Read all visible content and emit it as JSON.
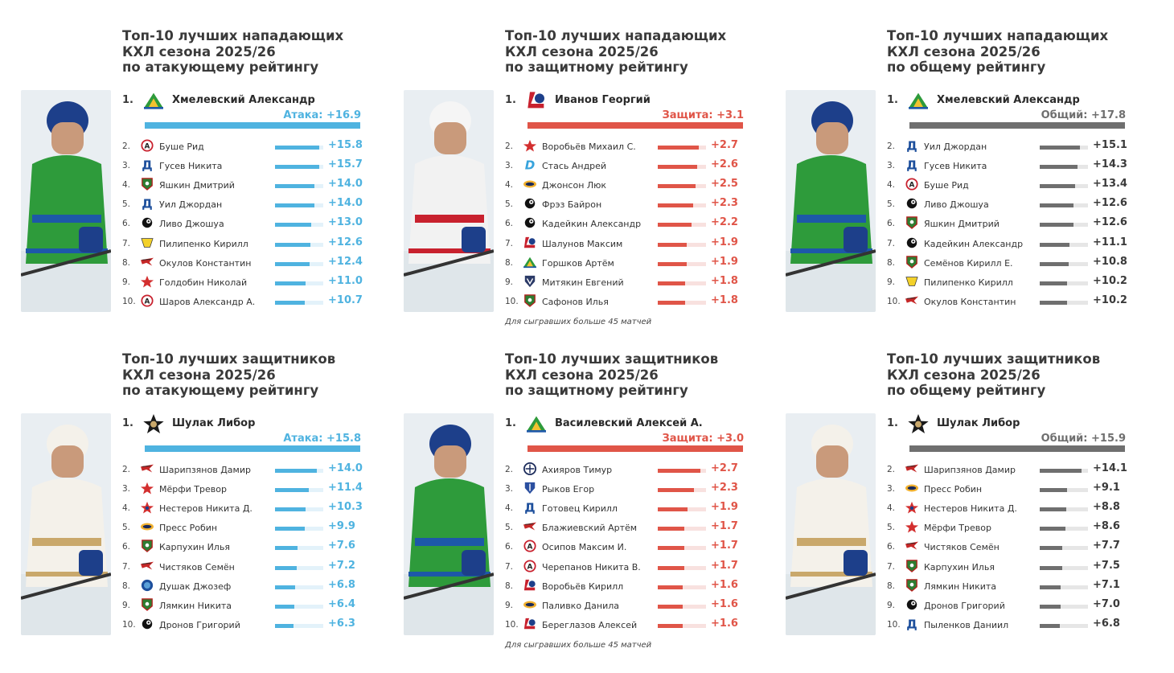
{
  "colors": {
    "attack": "#4fb3e0",
    "defense": "#e05548",
    "overall": "#6f6f6f"
  },
  "panels": [
    {
      "id": "fwd-attack",
      "title": "Топ-10 лучших нападающих\nКХЛ сезона 2025/26\nпо атакующему рейтингу",
      "color": "attack",
      "photo": {
        "jersey": "#2e9b3b",
        "trim": "#1d58a8",
        "helmet": "#1d3f8a"
      },
      "first": {
        "rank": "1.",
        "name": "Хмелевский Александр",
        "score_label": "Атака: +16.9",
        "value": 16.9,
        "logo_icon": "salavat-logo-icon"
      },
      "footnote": "",
      "chart_data": {
        "type": "bar",
        "categories": [
          "Хмелевский Александр",
          "Буше Рид",
          "Гусев Никита",
          "Яшкин Дмитрий",
          "Уил Джордан",
          "Ливо Джошуа",
          "Пилипенко Кирилл",
          "Окулов Константин",
          "Голдобин Николай",
          "Шаров Александр А."
        ],
        "values": [
          16.9,
          15.8,
          15.7,
          14.0,
          14.0,
          13.0,
          12.6,
          12.4,
          11.0,
          10.7
        ]
      },
      "rows": [
        {
          "rank": "2.",
          "name": "Буше Рид",
          "value": 15.8,
          "label": "+15.8",
          "logo_icon": "avangard-logo-icon"
        },
        {
          "rank": "3.",
          "name": "Гусев Никита",
          "value": 15.7,
          "label": "+15.7",
          "logo_icon": "dynamo-logo-icon"
        },
        {
          "rank": "4.",
          "name": "Яшкин Дмитрий",
          "value": 14.0,
          "label": "+14.0",
          "logo_icon": "akbars-logo-icon"
        },
        {
          "rank": "5.",
          "name": "Уил Джордан",
          "value": 14.0,
          "label": "+14.0",
          "logo_icon": "dynamo-logo-icon"
        },
        {
          "rank": "6.",
          "name": "Ливо Джошуа",
          "value": 13.0,
          "label": "+13.0",
          "logo_icon": "traktor-logo-icon"
        },
        {
          "rank": "7.",
          "name": "Пилипенко Кирилл",
          "value": 12.6,
          "label": "+12.6",
          "logo_icon": "severstal-logo-icon"
        },
        {
          "rank": "8.",
          "name": "Окулов Константин",
          "value": 12.4,
          "label": "+12.4",
          "logo_icon": "metallurg-logo-icon"
        },
        {
          "rank": "9.",
          "name": "Голдобин Николай",
          "value": 11.0,
          "label": "+11.0",
          "logo_icon": "spartak-logo-icon"
        },
        {
          "rank": "10.",
          "name": "Шаров Александр А.",
          "value": 10.7,
          "label": "+10.7",
          "logo_icon": "avangard-logo-icon"
        }
      ]
    },
    {
      "id": "fwd-defense",
      "title": "Топ-10 лучших нападающих\nКХЛ сезона 2025/26\nпо защитному рейтингу",
      "color": "defense",
      "photo": {
        "jersey": "#f2f2f2",
        "trim": "#c8212e",
        "helmet": "#f5f5f5"
      },
      "first": {
        "rank": "1.",
        "name": "Иванов Георгий",
        "score_label": "Защита: +3.1",
        "value": 3.1,
        "logo_icon": "lokomotiv-logo-icon"
      },
      "footnote": "Для сыгравших больше 45 матчей",
      "chart_data": {
        "type": "bar",
        "categories": [
          "Иванов Георгий",
          "Воробьёв Михаил С.",
          "Стась Андрей",
          "Джонсон Люк",
          "Фрэз Байрон",
          "Кадейкин Александр",
          "Шалунов Максим",
          "Горшков Артём",
          "Митякин Евгений",
          "Сафонов Илья"
        ],
        "values": [
          3.1,
          2.7,
          2.6,
          2.5,
          2.3,
          2.2,
          1.9,
          1.9,
          1.8,
          1.8
        ]
      },
      "rows": [
        {
          "rank": "2.",
          "name": "Воробьёв Михаил С.",
          "value": 2.7,
          "label": "+2.7",
          "logo_icon": "spartak-logo-icon"
        },
        {
          "rank": "3.",
          "name": "Стась Андрей",
          "value": 2.6,
          "label": "+2.6",
          "logo_icon": "dinamo-minsk-logo-icon"
        },
        {
          "rank": "4.",
          "name": "Джонсон Люк",
          "value": 2.5,
          "label": "+2.5",
          "logo_icon": "torpedo-logo-icon"
        },
        {
          "rank": "5.",
          "name": "Фрэз Байрон",
          "value": 2.3,
          "label": "+2.3",
          "logo_icon": "traktor-logo-icon"
        },
        {
          "rank": "6.",
          "name": "Кадейкин Александр",
          "value": 2.2,
          "label": "+2.2",
          "logo_icon": "traktor-logo-icon"
        },
        {
          "rank": "7.",
          "name": "Шалунов Максим",
          "value": 1.9,
          "label": "+1.9",
          "logo_icon": "lokomotiv-logo-icon"
        },
        {
          "rank": "8.",
          "name": "Горшков Артём",
          "value": 1.9,
          "label": "+1.9",
          "logo_icon": "salavat-logo-icon"
        },
        {
          "rank": "9.",
          "name": "Митякин Евгений",
          "value": 1.8,
          "label": "+1.8",
          "logo_icon": "avtomobilist-logo-icon"
        },
        {
          "rank": "10.",
          "name": "Сафонов Илья",
          "value": 1.8,
          "label": "+1.8",
          "logo_icon": "akbars-logo-icon"
        }
      ]
    },
    {
      "id": "fwd-overall",
      "title": "Топ-10 лучших нападающих\nКХЛ сезона 2025/26\nпо общему рейтингу",
      "color": "overall",
      "photo": {
        "jersey": "#2e9b3b",
        "trim": "#1d58a8",
        "helmet": "#1d3f8a"
      },
      "first": {
        "rank": "1.",
        "name": "Хмелевский Александр",
        "score_label": "Общий: +17.8",
        "value": 17.8,
        "logo_icon": "salavat-logo-icon"
      },
      "footnote": "",
      "chart_data": {
        "type": "bar",
        "categories": [
          "Хмелевский Александр",
          "Уил Джордан",
          "Гусев Никита",
          "Буше Рид",
          "Ливо Джошуа",
          "Яшкин Дмитрий",
          "Кадейкин Александр",
          "Семёнов Кирилл Е.",
          "Пилипенко Кирилл",
          "Окулов Константин"
        ],
        "values": [
          17.8,
          15.1,
          14.3,
          13.4,
          12.6,
          12.6,
          11.1,
          10.8,
          10.2,
          10.2
        ]
      },
      "rows": [
        {
          "rank": "2.",
          "name": "Уил Джордан",
          "value": 15.1,
          "label": "+15.1",
          "logo_icon": "dynamo-logo-icon"
        },
        {
          "rank": "3.",
          "name": "Гусев Никита",
          "value": 14.3,
          "label": "+14.3",
          "logo_icon": "dynamo-logo-icon"
        },
        {
          "rank": "4.",
          "name": "Буше Рид",
          "value": 13.4,
          "label": "+13.4",
          "logo_icon": "avangard-logo-icon"
        },
        {
          "rank": "5.",
          "name": "Ливо Джошуа",
          "value": 12.6,
          "label": "+12.6",
          "logo_icon": "traktor-logo-icon"
        },
        {
          "rank": "6.",
          "name": "Яшкин Дмитрий",
          "value": 12.6,
          "label": "+12.6",
          "logo_icon": "akbars-logo-icon"
        },
        {
          "rank": "7.",
          "name": "Кадейкин Александр",
          "value": 11.1,
          "label": "+11.1",
          "logo_icon": "traktor-logo-icon"
        },
        {
          "rank": "8.",
          "name": "Семёнов Кирилл Е.",
          "value": 10.8,
          "label": "+10.8",
          "logo_icon": "akbars-logo-icon"
        },
        {
          "rank": "9.",
          "name": "Пилипенко Кирилл",
          "value": 10.2,
          "label": "+10.2",
          "logo_icon": "severstal-logo-icon"
        },
        {
          "rank": "10.",
          "name": "Окулов Константин",
          "value": 10.2,
          "label": "+10.2",
          "logo_icon": "metallurg-logo-icon"
        }
      ]
    },
    {
      "id": "def-attack",
      "title": "Топ-10 лучших защитников\nКХЛ сезона 2025/26\nпо атакующему рейтингу",
      "color": "attack",
      "photo": {
        "jersey": "#f4f1ea",
        "trim": "#c9a86b",
        "helmet": "#f4f1ea"
      },
      "first": {
        "rank": "1.",
        "name": "Шулак Либор",
        "score_label": "Атака: +15.8",
        "value": 15.8,
        "logo_icon": "admiral-logo-icon"
      },
      "footnote": "",
      "chart_data": {
        "type": "bar",
        "categories": [
          "Шулак Либор",
          "Шарипзянов Дамир",
          "Мёрфи Тревор",
          "Нестеров Никита Д.",
          "Пресс Робин",
          "Карпухин Илья",
          "Чистяков Семён",
          "Душак Джозеф",
          "Лямкин Никита",
          "Дронов Григорий"
        ],
        "values": [
          15.8,
          14.0,
          11.4,
          10.3,
          9.9,
          7.6,
          7.2,
          6.8,
          6.4,
          6.3
        ]
      },
      "rows": [
        {
          "rank": "2.",
          "name": "Шарипзянов Дамир",
          "value": 14.0,
          "label": "+14.0",
          "logo_icon": "metallurg-logo-icon"
        },
        {
          "rank": "3.",
          "name": "Мёрфи Тревор",
          "value": 11.4,
          "label": "+11.4",
          "logo_icon": "spartak-logo-icon"
        },
        {
          "rank": "4.",
          "name": "Нестеров Никита Д.",
          "value": 10.3,
          "label": "+10.3",
          "logo_icon": "cska-logo-icon"
        },
        {
          "rank": "5.",
          "name": "Пресс Робин",
          "value": 9.9,
          "label": "+9.9",
          "logo_icon": "torpedo-logo-icon"
        },
        {
          "rank": "6.",
          "name": "Карпухин Илья",
          "value": 7.6,
          "label": "+7.6",
          "logo_icon": "akbars-logo-icon"
        },
        {
          "rank": "7.",
          "name": "Чистяков Семён",
          "value": 7.2,
          "label": "+7.2",
          "logo_icon": "metallurg-logo-icon"
        },
        {
          "rank": "8.",
          "name": "Душак Джозеф",
          "value": 6.8,
          "label": "+6.8",
          "logo_icon": "barys-logo-icon"
        },
        {
          "rank": "9.",
          "name": "Лямкин Никита",
          "value": 6.4,
          "label": "+6.4",
          "logo_icon": "akbars-logo-icon"
        },
        {
          "rank": "10.",
          "name": "Дронов Григорий",
          "value": 6.3,
          "label": "+6.3",
          "logo_icon": "traktor-logo-icon"
        }
      ]
    },
    {
      "id": "def-defense",
      "title": "Топ-10 лучших защитников\nКХЛ сезона 2025/26\nпо защитному рейтингу",
      "color": "defense",
      "photo": {
        "jersey": "#2e9b3b",
        "trim": "#1d58a8",
        "helmet": "#1d3f8a"
      },
      "first": {
        "rank": "1.",
        "name": "Василевский Алексей А.",
        "score_label": "Защита: +3.0",
        "value": 3.0,
        "logo_icon": "salavat-logo-icon"
      },
      "footnote": "Для сыгравших больше 45 матчей",
      "chart_data": {
        "type": "bar",
        "categories": [
          "Василевский Алексей А.",
          "Ахияров Тимур",
          "Рыков Егор",
          "Готовец Кирилл",
          "Блажиевский Артём",
          "Осипов Максим И.",
          "Черепанов Никита В.",
          "Воробьёв Кирилл",
          "Паливко Данила",
          "Береглазов Алексей"
        ],
        "values": [
          3.0,
          2.7,
          2.3,
          1.9,
          1.7,
          1.7,
          1.7,
          1.6,
          1.6,
          1.6
        ]
      },
      "rows": [
        {
          "rank": "2.",
          "name": "Ахияров Тимур",
          "value": 2.7,
          "label": "+2.7",
          "logo_icon": "sibir-logo-icon"
        },
        {
          "rank": "3.",
          "name": "Рыков Егор",
          "value": 2.3,
          "label": "+2.3",
          "logo_icon": "ska-logo-icon"
        },
        {
          "rank": "4.",
          "name": "Готовец Кирилл",
          "value": 1.9,
          "label": "+1.9",
          "logo_icon": "dynamo-logo-icon"
        },
        {
          "rank": "5.",
          "name": "Блажиевский Артём",
          "value": 1.7,
          "label": "+1.7",
          "logo_icon": "metallurg-logo-icon"
        },
        {
          "rank": "6.",
          "name": "Осипов Максим И.",
          "value": 1.7,
          "label": "+1.7",
          "logo_icon": "avangard-logo-icon"
        },
        {
          "rank": "7.",
          "name": "Черепанов Никита В.",
          "value": 1.7,
          "label": "+1.7",
          "logo_icon": "avangard-logo-icon"
        },
        {
          "rank": "8.",
          "name": "Воробьёв Кирилл",
          "value": 1.6,
          "label": "+1.6",
          "logo_icon": "lokomotiv-logo-icon"
        },
        {
          "rank": "9.",
          "name": "Паливко Данила",
          "value": 1.6,
          "label": "+1.6",
          "logo_icon": "torpedo-logo-icon"
        },
        {
          "rank": "10.",
          "name": "Береглазов Алексей",
          "value": 1.6,
          "label": "+1.6",
          "logo_icon": "lokomotiv-logo-icon"
        }
      ]
    },
    {
      "id": "def-overall",
      "title": "Топ-10 лучших защитников\nКХЛ сезона 2025/26\nпо общему рейтингу",
      "color": "overall",
      "photo": {
        "jersey": "#f4f1ea",
        "trim": "#c9a86b",
        "helmet": "#f4f1ea"
      },
      "first": {
        "rank": "1.",
        "name": "Шулак Либор",
        "score_label": "Общий: +15.9",
        "value": 15.9,
        "logo_icon": "admiral-logo-icon"
      },
      "footnote": "",
      "chart_data": {
        "type": "bar",
        "categories": [
          "Шулак Либор",
          "Шарипзянов Дамир",
          "Пресс Робин",
          "Нестеров Никита Д.",
          "Мёрфи Тревор",
          "Чистяков Семён",
          "Карпухин Илья",
          "Лямкин Никита",
          "Дронов Григорий",
          "Пыленков Даниил"
        ],
        "values": [
          15.9,
          14.1,
          9.1,
          8.8,
          8.6,
          7.7,
          7.5,
          7.1,
          7.0,
          6.8
        ]
      },
      "rows": [
        {
          "rank": "2.",
          "name": "Шарипзянов Дамир",
          "value": 14.1,
          "label": "+14.1",
          "logo_icon": "metallurg-logo-icon"
        },
        {
          "rank": "3.",
          "name": "Пресс Робин",
          "value": 9.1,
          "label": "+9.1",
          "logo_icon": "torpedo-logo-icon"
        },
        {
          "rank": "4.",
          "name": "Нестеров Никита Д.",
          "value": 8.8,
          "label": "+8.8",
          "logo_icon": "cska-logo-icon"
        },
        {
          "rank": "5.",
          "name": "Мёрфи Тревор",
          "value": 8.6,
          "label": "+8.6",
          "logo_icon": "spartak-logo-icon"
        },
        {
          "rank": "6.",
          "name": "Чистяков Семён",
          "value": 7.7,
          "label": "+7.7",
          "logo_icon": "metallurg-logo-icon"
        },
        {
          "rank": "7.",
          "name": "Карпухин Илья",
          "value": 7.5,
          "label": "+7.5",
          "logo_icon": "akbars-logo-icon"
        },
        {
          "rank": "8.",
          "name": "Лямкин Никита",
          "value": 7.1,
          "label": "+7.1",
          "logo_icon": "akbars-logo-icon"
        },
        {
          "rank": "9.",
          "name": "Дронов Григорий",
          "value": 7.0,
          "label": "+7.0",
          "logo_icon": "traktor-logo-icon"
        },
        {
          "rank": "10.",
          "name": "Пыленков Даниил",
          "value": 6.8,
          "label": "+6.8",
          "logo_icon": "dynamo-logo-icon"
        }
      ]
    }
  ]
}
